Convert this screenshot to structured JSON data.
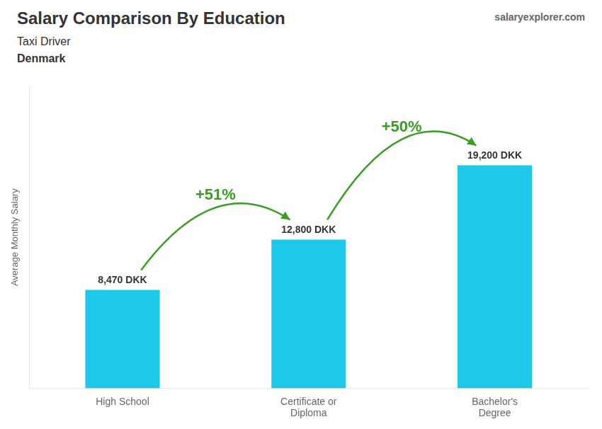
{
  "chart_data": {
    "type": "bar",
    "title": "Salary Comparison By Education",
    "subtitle": "Taxi Driver",
    "annotations": [
      "Denmark",
      "salaryexplorer.com"
    ],
    "ylabel": "Average Monthly Salary",
    "categories": [
      "High School",
      "Certificate or\nDiploma",
      "Bachelor's\nDegree"
    ],
    "values": [
      8470,
      12800,
      19200
    ],
    "value_labels": [
      "8,470 DKK",
      "12,800 DKK",
      "19,200 DKK"
    ],
    "change_labels": [
      "+51%",
      "+50%"
    ],
    "color": "#1EC8E8",
    "ylim": [
      0,
      26000
    ],
    "grid": false,
    "legend": false,
    "data_labels": true,
    "tick_labels": "x"
  }
}
